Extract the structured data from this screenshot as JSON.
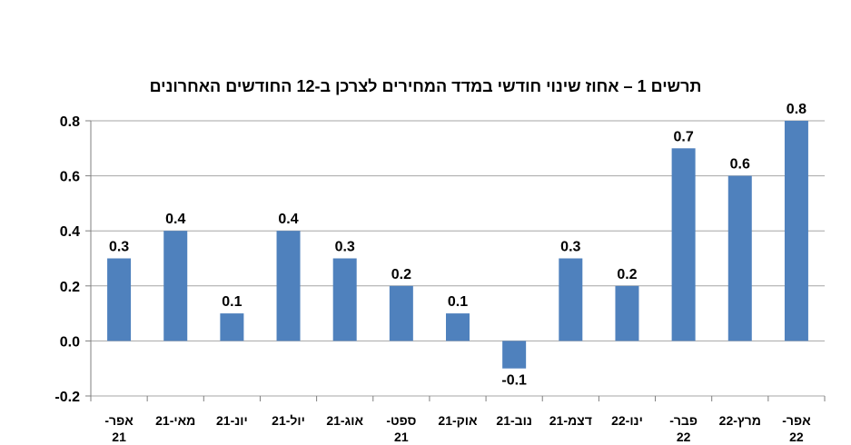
{
  "chart_data": {
    "type": "bar",
    "title": "תרשים 1 – אחוז שינוי חודשי במדד המחירים לצרכן ב-12 החודשים האחרונים",
    "categories": [
      [
        "אפר-",
        "21"
      ],
      [
        "מאי-21"
      ],
      [
        "יונ-21"
      ],
      [
        "יול-21"
      ],
      [
        "אוג-21"
      ],
      [
        "ספט-",
        "21"
      ],
      [
        "אוק-21"
      ],
      [
        "נוב-21"
      ],
      [
        "דצמ-21"
      ],
      [
        "ינו-22"
      ],
      [
        "פבר-",
        "22"
      ],
      [
        "מרץ-22"
      ],
      [
        "אפר-",
        "22"
      ]
    ],
    "values": [
      0.3,
      0.4,
      0.1,
      0.4,
      0.3,
      0.2,
      0.1,
      -0.1,
      0.3,
      0.2,
      0.7,
      0.6,
      0.8
    ],
    "data_labels": [
      "0.3",
      "0.4",
      "0.1",
      "0.4",
      "0.3",
      "0.2",
      "0.1",
      "-0.1",
      "0.3",
      "0.2",
      "0.7",
      "0.6",
      "0.8"
    ],
    "ylim": [
      -0.2,
      0.8
    ],
    "yticks": [
      "0.8",
      "0.6",
      "0.4",
      "0.2",
      "0.0",
      "-0.2"
    ],
    "ytick_values": [
      0.8,
      0.6,
      0.4,
      0.2,
      0.0,
      -0.2
    ],
    "grid": true,
    "bar_color": "#4f81bd",
    "grid_color": "#a6a6a6"
  }
}
